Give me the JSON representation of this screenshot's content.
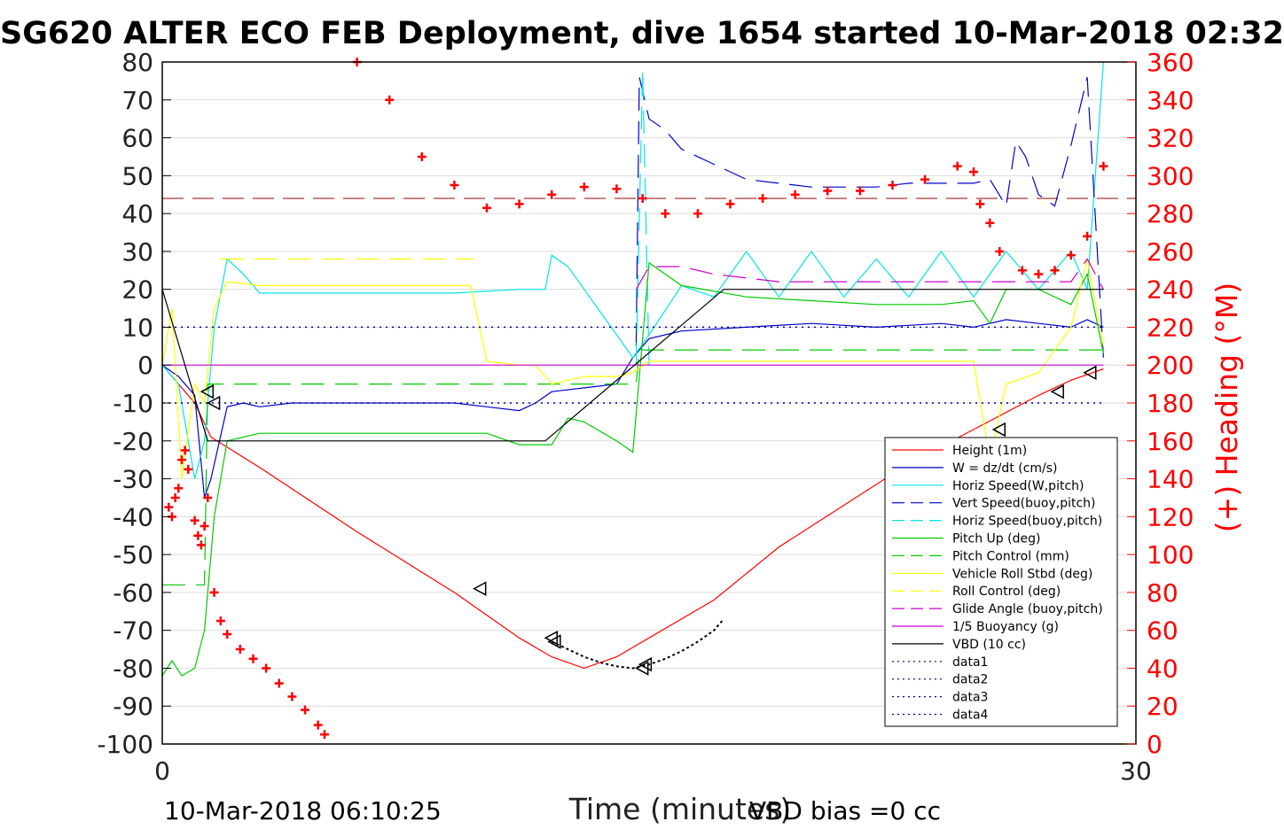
{
  "chart_data": {
    "type": "line",
    "title": "SG620 ALTER ECO FEB Deployment, dive 1654 started 10-Mar-2018 02:32",
    "xlabel": "Time (minutes)",
    "ylabel_right": "(+) Heading (°M)",
    "xlim": [
      0,
      30
    ],
    "ylim": [
      -100,
      80
    ],
    "ylim_right": [
      0,
      360
    ],
    "x_ticks": [
      "0",
      "30"
    ],
    "y_ticks": [
      "80",
      "70",
      "60",
      "50",
      "40",
      "30",
      "20",
      "10",
      "0",
      "-10",
      "-20",
      "-30",
      "-40",
      "-50",
      "-60",
      "-70",
      "-80",
      "-90",
      "-100"
    ],
    "y_right_ticks": [
      "360",
      "340",
      "320",
      "300",
      "280",
      "260",
      "240",
      "220",
      "200",
      "180",
      "160",
      "140",
      "120",
      "100",
      "80",
      "60",
      "40",
      "20",
      "0"
    ],
    "grid": true,
    "legend_position": "right",
    "colors": {
      "height": "#ff0000",
      "w": "#0000cc",
      "horiz_speed": "#00e5e5",
      "vert_speed_buoy": "#0000cc",
      "horiz_speed_buoy": "#00e5e5",
      "pitch_up": "#00cc00",
      "pitch_control": "#00cc00",
      "roll": "#ffff00",
      "roll_control": "#ffff00",
      "glide_angle": "#cc00cc",
      "buoyancy": "#cc00cc",
      "vbd": "#000000",
      "heading": "#ff0000",
      "right_axis": "#ff0000"
    },
    "series": [
      {
        "name": "Height (1m)",
        "key": "height",
        "style": "solid",
        "x": [
          0,
          1,
          1.5,
          3,
          6,
          9,
          11,
          12,
          13,
          14,
          15,
          17,
          19,
          21,
          23,
          25,
          27,
          28,
          29
        ],
        "y": [
          0,
          -10,
          -19,
          -27,
          -44,
          -60,
          -72,
          -77,
          -80,
          -77,
          -72,
          -62,
          -48,
          -37,
          -26,
          -17,
          -8,
          -4,
          -1
        ]
      },
      {
        "name": "W = dz/dt (cm/s)",
        "key": "w",
        "style": "solid",
        "x": [
          0,
          0.5,
          1,
          1.3,
          1.5,
          2,
          2.5,
          3,
          4,
          6,
          8,
          9,
          10,
          11,
          11.5,
          12,
          13,
          14,
          14.5,
          15,
          16,
          18,
          20,
          22,
          24,
          25,
          26,
          27,
          28,
          28.5,
          29
        ],
        "y": [
          0,
          -3,
          -8,
          -35,
          -30,
          -11,
          -10,
          -11,
          -10,
          -10,
          -10,
          -10,
          -11,
          -12,
          -10,
          -7,
          -6,
          -5,
          2,
          7,
          9,
          10,
          11,
          10,
          11,
          10,
          12,
          11,
          10,
          12,
          10
        ]
      },
      {
        "name": "Horiz Speed(W,pitch)",
        "key": "horiz_speed",
        "style": "solid",
        "x": [
          0,
          0.5,
          1,
          1.3,
          1.6,
          2,
          2.5,
          3,
          5,
          7,
          9,
          11,
          11.8,
          12,
          12.5,
          13,
          14,
          14.5,
          15,
          16,
          17,
          18,
          19,
          20,
          21,
          22,
          23,
          24,
          25,
          26,
          27,
          28,
          28.5,
          29
        ],
        "y": [
          0,
          -5,
          -30,
          -20,
          10,
          28,
          24,
          19,
          19,
          19,
          19,
          20,
          20,
          29,
          26,
          20,
          8,
          2,
          8,
          21,
          18,
          30,
          18,
          30,
          18,
          28,
          18,
          30,
          18,
          30,
          20,
          30,
          20,
          80
        ]
      },
      {
        "name": "Vert Speed(buoy,pitch)",
        "key": "vert_speed_buoy",
        "style": "dash",
        "x": [
          14.6,
          14.7,
          15,
          15.5,
          16,
          17,
          18,
          19,
          20,
          21,
          22,
          23,
          24,
          25,
          25.5,
          26,
          26.3,
          26.6,
          27,
          27.5,
          28,
          28.5,
          29
        ],
        "y": [
          5,
          76,
          65,
          62,
          57,
          53,
          49,
          48,
          47,
          47,
          47,
          48,
          48,
          48,
          49,
          42,
          59,
          55,
          45,
          42,
          58,
          76,
          2
        ]
      },
      {
        "name": "Horiz Speed(buoy,pitch)",
        "key": "horiz_speed_buoy",
        "style": "dash",
        "x": [
          14.6,
          14.8,
          15
        ],
        "y": [
          0,
          78,
          0
        ]
      },
      {
        "name": "Pitch Up (deg)",
        "key": "pitch_up",
        "style": "solid",
        "x": [
          0,
          0.3,
          0.6,
          1,
          1.3,
          1.6,
          2,
          3,
          5,
          7,
          9,
          10,
          11,
          12,
          12.5,
          13,
          14,
          14.5,
          15,
          16,
          18,
          20,
          22,
          24,
          25,
          25.5,
          26,
          27,
          28,
          28.5,
          29
        ],
        "y": [
          -82,
          -78,
          -82,
          -80,
          -70,
          -40,
          -20,
          -18,
          -18,
          -18,
          -18,
          -18,
          -21,
          -21,
          -14,
          -15,
          -20,
          -23,
          27,
          21,
          18,
          17,
          16,
          16,
          17,
          11,
          20,
          20,
          16,
          24,
          3
        ]
      },
      {
        "name": "Pitch Control (mm)",
        "key": "pitch_control",
        "style": "dash",
        "x": [
          0,
          1.3,
          1.4,
          14.6,
          14.7,
          29
        ],
        "y": [
          -58,
          -58,
          -5,
          -5,
          4,
          4
        ]
      },
      {
        "name": "Vehicle Roll Stbd (deg)",
        "key": "roll",
        "style": "solid",
        "x": [
          0,
          0.3,
          0.6,
          1,
          1.3,
          1.6,
          2,
          3,
          5,
          7,
          9,
          9.5,
          10,
          11,
          11.5,
          12,
          13,
          14,
          14.5,
          15,
          16,
          18,
          20,
          22,
          24,
          25,
          25.5,
          26,
          27,
          28,
          28.5,
          29
        ],
        "y": [
          0,
          15,
          -30,
          -5,
          -10,
          15,
          22,
          21,
          21,
          21,
          21,
          21,
          1,
          0,
          0,
          -5,
          -3,
          -3,
          -2,
          1,
          1,
          1,
          1,
          1,
          1,
          1,
          -25,
          -5,
          -2,
          10,
          28,
          5
        ]
      },
      {
        "name": "Roll Control (deg)",
        "key": "roll_control",
        "style": "dash",
        "x": [
          1.8,
          9.6
        ],
        "y": [
          28,
          28
        ]
      },
      {
        "name": "Glide Angle (buoy,pitch)",
        "key": "glide_angle",
        "style": "dash",
        "x": [
          14.6,
          15,
          16,
          17,
          18,
          19,
          20,
          22,
          24,
          26,
          27,
          28,
          28.5,
          29
        ],
        "y": [
          20,
          26,
          26,
          24,
          23,
          22,
          22,
          22,
          22,
          22,
          22,
          22,
          28,
          20
        ]
      },
      {
        "name": "1/5 Buoyancy (g)",
        "key": "buoyancy",
        "style": "solid",
        "x": [
          0,
          0.5,
          29
        ],
        "y": [
          0,
          0,
          0
        ]
      },
      {
        "name": "VBD (10 cc)",
        "key": "vbd",
        "style": "solid",
        "x": [
          0,
          1.4,
          11.8,
          17.3,
          29
        ],
        "y": [
          20,
          -20,
          -20,
          20,
          20
        ]
      },
      {
        "name": "data1",
        "key": "data1",
        "style": "dot",
        "x": [],
        "y": []
      },
      {
        "name": "data2",
        "key": "data2",
        "style": "dot",
        "x": [],
        "y": []
      },
      {
        "name": "data3",
        "key": "data3",
        "style": "dot",
        "x": [
          0,
          29
        ],
        "y": [
          10,
          10
        ]
      },
      {
        "name": "data4",
        "key": "data4",
        "style": "dot",
        "x": [
          0,
          29
        ],
        "y": [
          -10,
          -10
        ]
      }
    ],
    "heading_markers": {
      "x": [
        0.2,
        0.3,
        0.4,
        0.5,
        0.6,
        0.7,
        0.8,
        1.0,
        1.1,
        1.2,
        1.3,
        1.4,
        1.6,
        1.8,
        2.0,
        2.4,
        2.8,
        3.2,
        3.6,
        4.0,
        4.4,
        4.8,
        5.0,
        6.0,
        7.0,
        8.0,
        9.0,
        10.0,
        11.0,
        12.0,
        13.0,
        14.0,
        14.8,
        15.5,
        16.5,
        17.5,
        18.5,
        19.5,
        20.5,
        21.5,
        22.5,
        23.5,
        24.5,
        25.0,
        25.2,
        25.5,
        25.8,
        26.5,
        27.0,
        27.5,
        28.0,
        28.5,
        29.0
      ],
      "y": [
        125,
        120,
        130,
        135,
        150,
        155,
        145,
        118,
        110,
        105,
        115,
        130,
        80,
        65,
        58,
        50,
        45,
        40,
        32,
        25,
        18,
        10,
        5,
        360,
        340,
        310,
        295,
        283,
        285,
        290,
        294,
        293,
        288,
        280,
        280,
        285,
        288,
        290,
        292,
        292,
        295,
        298,
        305,
        302,
        285,
        275,
        260,
        250,
        248,
        250,
        258,
        268,
        305
      ]
    },
    "reference_lines": {
      "heading_target": 288
    },
    "triangle_markers": {
      "x": [
        1.4,
        1.6,
        9.8,
        12.0,
        12.1,
        14.8,
        14.9,
        25.8,
        27.6,
        28.6
      ],
      "y": [
        -7,
        -10,
        -59,
        -72,
        -73,
        -80,
        -79,
        -17,
        -7,
        -2
      ]
    },
    "dotted_overlay": {
      "x": [
        12.0,
        12.5,
        13.0,
        13.5,
        14.0,
        14.5,
        15.0,
        15.5,
        16.0,
        16.5,
        17.0,
        17.3
      ],
      "y": [
        -73,
        -75,
        -77,
        -78.5,
        -79.5,
        -80,
        -79,
        -77.5,
        -75.5,
        -73,
        -70,
        -67
      ]
    },
    "footer": {
      "left": "10-Mar-2018 06:10:25",
      "right": "VBD bias =0 cc"
    }
  }
}
